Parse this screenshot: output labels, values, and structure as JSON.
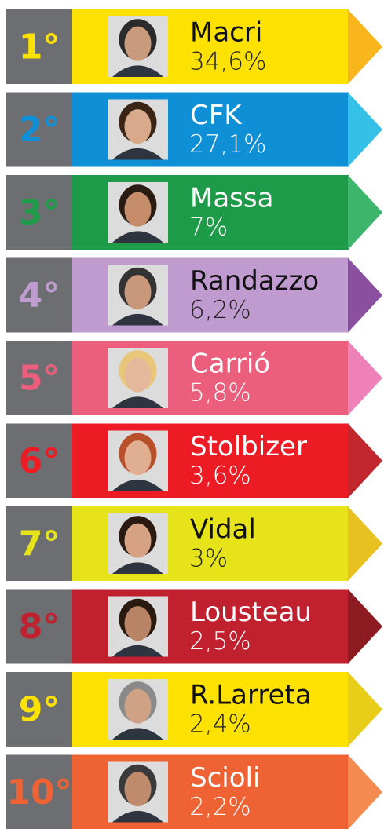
{
  "items": [
    {
      "rank": "1°",
      "name": "Macri",
      "percent": "34,6%"
    },
    {
      "rank": "2°",
      "name": "CFK",
      "percent": "27,1%"
    },
    {
      "rank": "3°",
      "name": "Massa",
      "percent": "7%"
    },
    {
      "rank": "4°",
      "name": "Randazzo",
      "percent": "6,2%"
    },
    {
      "rank": "5°",
      "name": "Carrió",
      "percent": "5,8%"
    },
    {
      "rank": "6°",
      "name": "Stolbizer",
      "percent": "3,6%"
    },
    {
      "rank": "7°",
      "name": "Vidal",
      "percent": "3%"
    },
    {
      "rank": "8°",
      "name": "Lousteau",
      "percent": "2,5%"
    },
    {
      "rank": "9°",
      "name": "R.Larreta",
      "percent": "2,4%"
    },
    {
      "rank": "10°",
      "name": "Scioli",
      "percent": "2,2%"
    }
  ]
}
